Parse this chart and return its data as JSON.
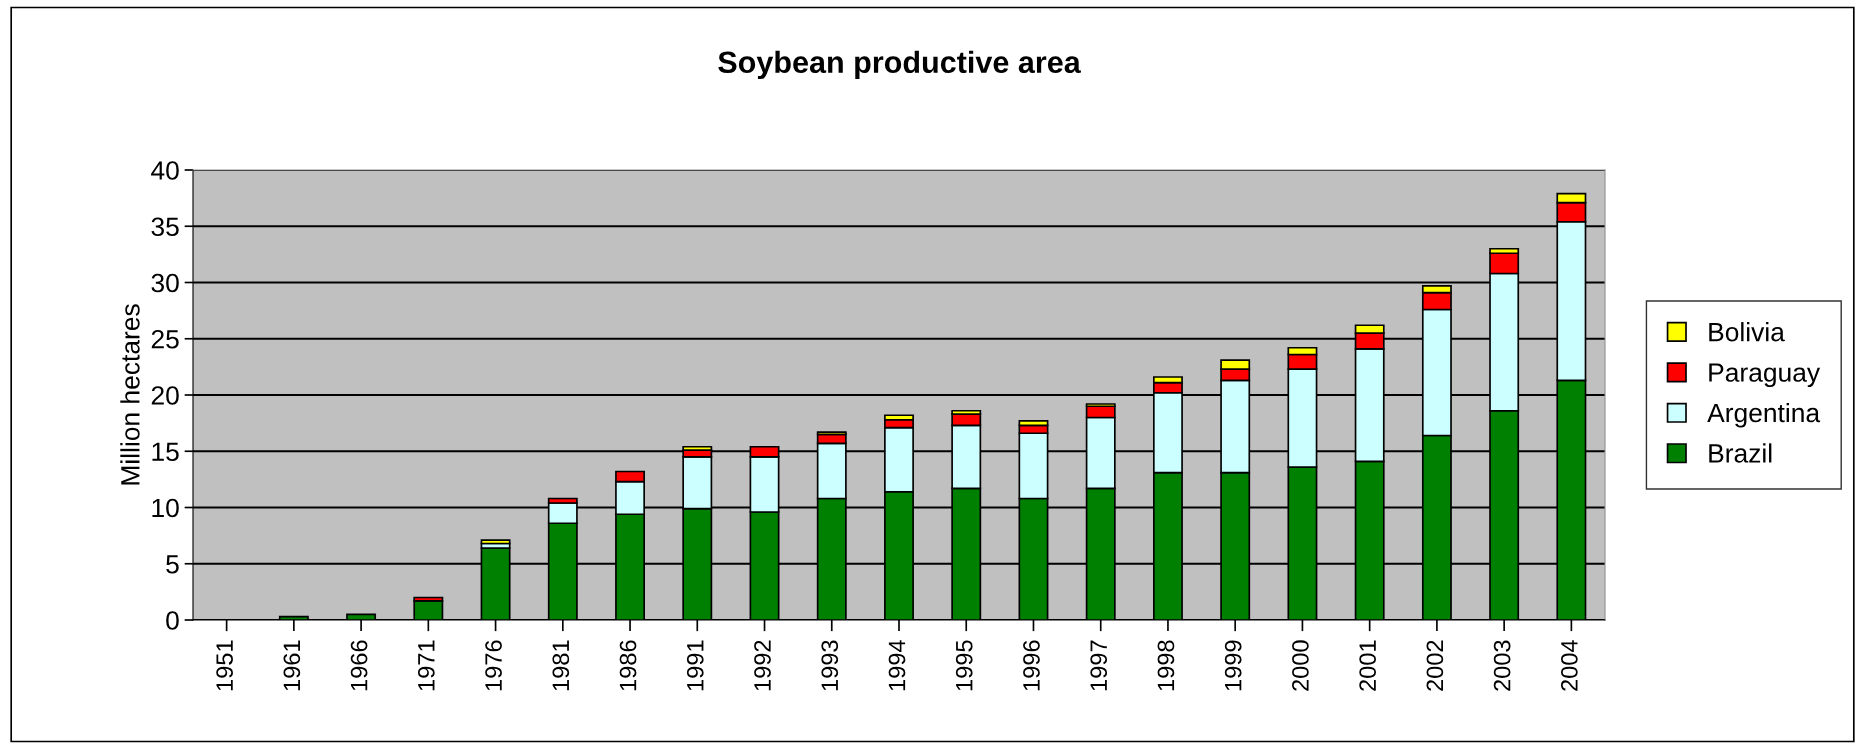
{
  "chart_data": {
    "type": "bar",
    "title": "Soybean productive area",
    "ylabel": "Million hectares",
    "stacked": true,
    "categories": [
      "1951",
      "1961",
      "1966",
      "1971",
      "1976",
      "1981",
      "1986",
      "1991",
      "1992",
      "1993",
      "1994",
      "1995",
      "1996",
      "1997",
      "1998",
      "1999",
      "2000",
      "2001",
      "2002",
      "2003",
      "2004"
    ],
    "series": [
      {
        "name": "Brazil",
        "color": "#008000",
        "values": [
          null,
          0.3,
          0.5,
          1.7,
          6.4,
          8.6,
          9.4,
          9.9,
          9.6,
          10.8,
          11.4,
          11.7,
          10.8,
          11.7,
          13.1,
          13.1,
          13.6,
          14.1,
          16.4,
          18.6,
          21.3
        ]
      },
      {
        "name": "Argentina",
        "color": "#ccffff",
        "values": [
          null,
          null,
          null,
          null,
          0.4,
          1.8,
          2.9,
          4.6,
          4.9,
          4.9,
          5.7,
          5.6,
          5.8,
          6.3,
          7.1,
          8.2,
          8.7,
          10.0,
          11.2,
          12.2,
          14.1
        ]
      },
      {
        "name": "Paraguay",
        "color": "#ff0000",
        "values": [
          null,
          null,
          null,
          0.3,
          null,
          0.4,
          0.9,
          0.6,
          0.9,
          0.8,
          0.7,
          1.0,
          0.7,
          1.0,
          0.9,
          1.0,
          1.3,
          1.4,
          1.5,
          1.8,
          1.7
        ]
      },
      {
        "name": "Bolivia",
        "color": "#ffff00",
        "values": [
          null,
          null,
          null,
          null,
          0.3,
          null,
          null,
          0.3,
          null,
          0.2,
          0.4,
          0.3,
          0.4,
          0.2,
          0.5,
          0.8,
          0.6,
          0.7,
          0.6,
          0.4,
          0.8
        ]
      }
    ],
    "ylim": [
      0,
      40
    ],
    "yticks": [
      0,
      5,
      10,
      15,
      20,
      25,
      30,
      35,
      40
    ],
    "grid": "y",
    "legend": "right"
  }
}
